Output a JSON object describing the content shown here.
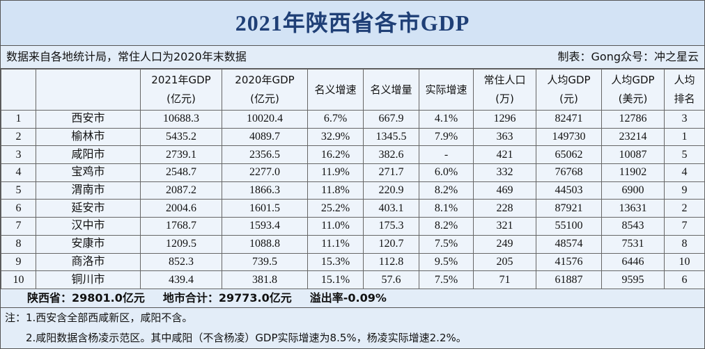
{
  "title": "2021年陕西省各市GDP",
  "source": {
    "left": "数据来自各地统计局，常住人口为2020年末数据",
    "right": "制表：Gong众号：冲之星云"
  },
  "table": {
    "header": [
      [],
      [],
      [
        "2021年GDP",
        "(亿元)"
      ],
      [
        "2020年GDP",
        "(亿元)"
      ],
      [
        "名义增速"
      ],
      [
        "名义增量"
      ],
      [
        "实际增速"
      ],
      [
        "常住人口",
        "(万)"
      ],
      [
        "人均GDP",
        "(元)"
      ],
      [
        "人均GDP",
        "(美元)"
      ],
      [
        "人均",
        "排名"
      ]
    ],
    "rows": [
      [
        "1",
        "西安市",
        "10688.3",
        "10020.4",
        "6.7%",
        "667.9",
        "4.1%",
        "1296",
        "82471",
        "12786",
        "3"
      ],
      [
        "2",
        "榆林市",
        "5435.2",
        "4089.7",
        "32.9%",
        "1345.5",
        "7.9%",
        "363",
        "149730",
        "23214",
        "1"
      ],
      [
        "3",
        "咸阳市",
        "2739.1",
        "2356.5",
        "16.2%",
        "382.6",
        "-",
        "421",
        "65062",
        "10087",
        "5"
      ],
      [
        "4",
        "宝鸡市",
        "2548.7",
        "2277.0",
        "11.9%",
        "271.7",
        "6.0%",
        "332",
        "76768",
        "11902",
        "4"
      ],
      [
        "5",
        "渭南市",
        "2087.2",
        "1866.3",
        "11.8%",
        "220.9",
        "8.2%",
        "469",
        "44503",
        "6900",
        "9"
      ],
      [
        "6",
        "延安市",
        "2004.6",
        "1601.5",
        "25.2%",
        "403.1",
        "8.1%",
        "228",
        "87921",
        "13631",
        "2"
      ],
      [
        "7",
        "汉中市",
        "1768.7",
        "1593.4",
        "11.0%",
        "175.3",
        "8.2%",
        "321",
        "55100",
        "8543",
        "7"
      ],
      [
        "8",
        "安康市",
        "1209.5",
        "1088.8",
        "11.1%",
        "120.7",
        "7.5%",
        "249",
        "48574",
        "7531",
        "8"
      ],
      [
        "9",
        "商洛市",
        "852.3",
        "739.5",
        "15.3%",
        "112.8",
        "9.5%",
        "205",
        "41576",
        "6446",
        "10"
      ],
      [
        "10",
        "铜川市",
        "439.4",
        "381.8",
        "15.1%",
        "57.6",
        "7.5%",
        "71",
        "61887",
        "9595",
        "6"
      ]
    ]
  },
  "summary": [
    "陕西省：29801.0亿元",
    "地市合计：29773.0亿元",
    "溢出率-0.09%"
  ],
  "notes": [
    "注：1.西安含全部西咸新区，咸阳不含。",
    "2.咸阳数据含杨凌示范区。其中咸阳（不含杨凌）GDP实际增速为8.5%，杨凌实际增速2.2%。"
  ]
}
